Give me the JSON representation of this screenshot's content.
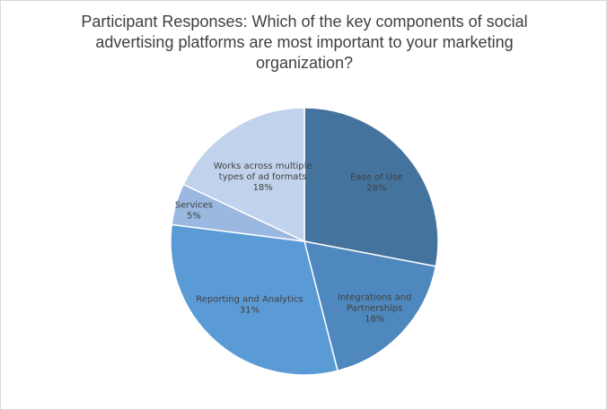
{
  "chart_data": {
    "type": "pie",
    "title_lines": [
      "Participant Responses: Which of the key components of social",
      "advertising platforms are most important to  your marketing",
      "organization?"
    ],
    "start_angle_deg": 0,
    "direction": "clockwise",
    "slices": [
      {
        "name": "Ease of Use",
        "value": 28,
        "label_lines": [
          "Ease of Use",
          "28%"
        ],
        "color": "#44739e"
      },
      {
        "name": "Integrations and Partnerships",
        "value": 18,
        "label_lines": [
          "Integrations and",
          "Partnerships",
          "18%"
        ],
        "color": "#4f88be"
      },
      {
        "name": "Reporting and Analytics",
        "value": 31,
        "label_lines": [
          "Reporting and Analytics",
          "31%"
        ],
        "color": "#5b9bd5"
      },
      {
        "name": "Services",
        "value": 5,
        "label_lines": [
          "Services",
          "5%"
        ],
        "color": "#9ab8e0"
      },
      {
        "name": "Works across multiple types of ad formats",
        "value": 18,
        "label_lines": [
          "Works across multiple",
          "types of ad formats",
          "18%"
        ],
        "color": "#c1d3ec"
      }
    ]
  }
}
